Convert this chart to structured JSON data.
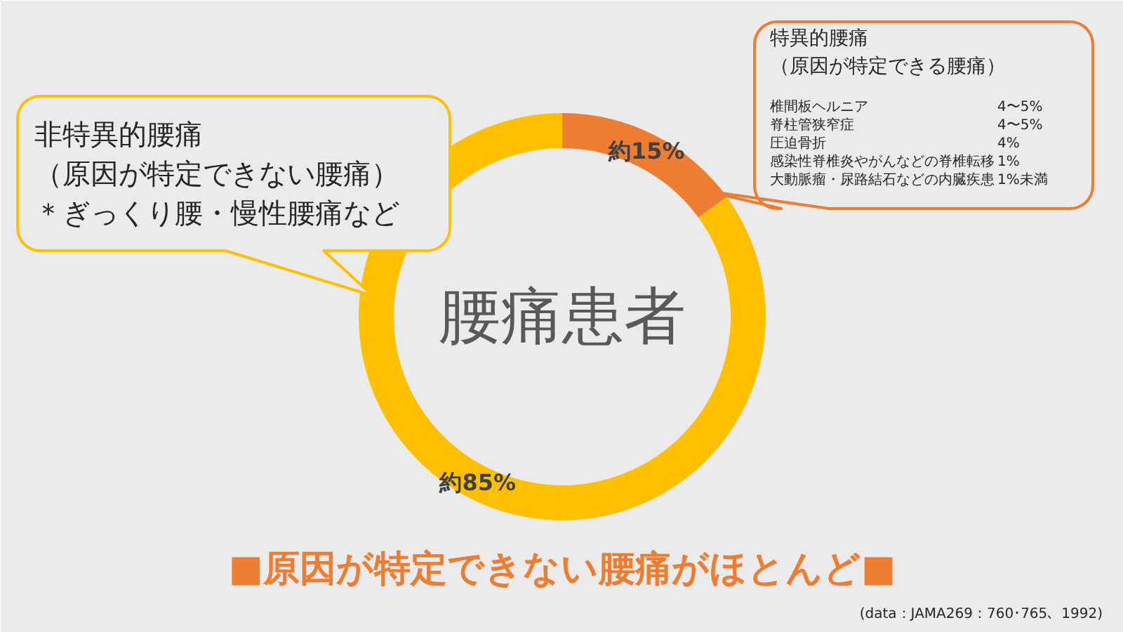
{
  "chart_data": {
    "type": "donut",
    "title": "腰痛患者",
    "subtitle": "■原因が特定できない腰痛がほとんど■",
    "categories": [
      null,
      null
    ],
    "values": [
      15,
      85
    ],
    "value_labels": [
      "約15%",
      "約85%"
    ],
    "colors": [
      "#ed7d31",
      "#ffc000"
    ],
    "annotations": [
      "特異的腰痛",
      "（原因が特定できる腰痛）",
      "椎間板ヘルニア",
      "4〜5%",
      "脊柱管狭窄症",
      "4〜5%",
      "圧迫骨折",
      "4%",
      "感染性脊椎炎やがんなどの脊椎転移",
      "1%",
      "大動脈瘤・尿路結石などの内臓疾患",
      "1%未満",
      "非特異的腰痛",
      "（原因が特定できない腰痛）",
      "＊ぎっくり腰・慢性腰痛など",
      "(data：JAMA269：760･765、1992)"
    ]
  }
}
